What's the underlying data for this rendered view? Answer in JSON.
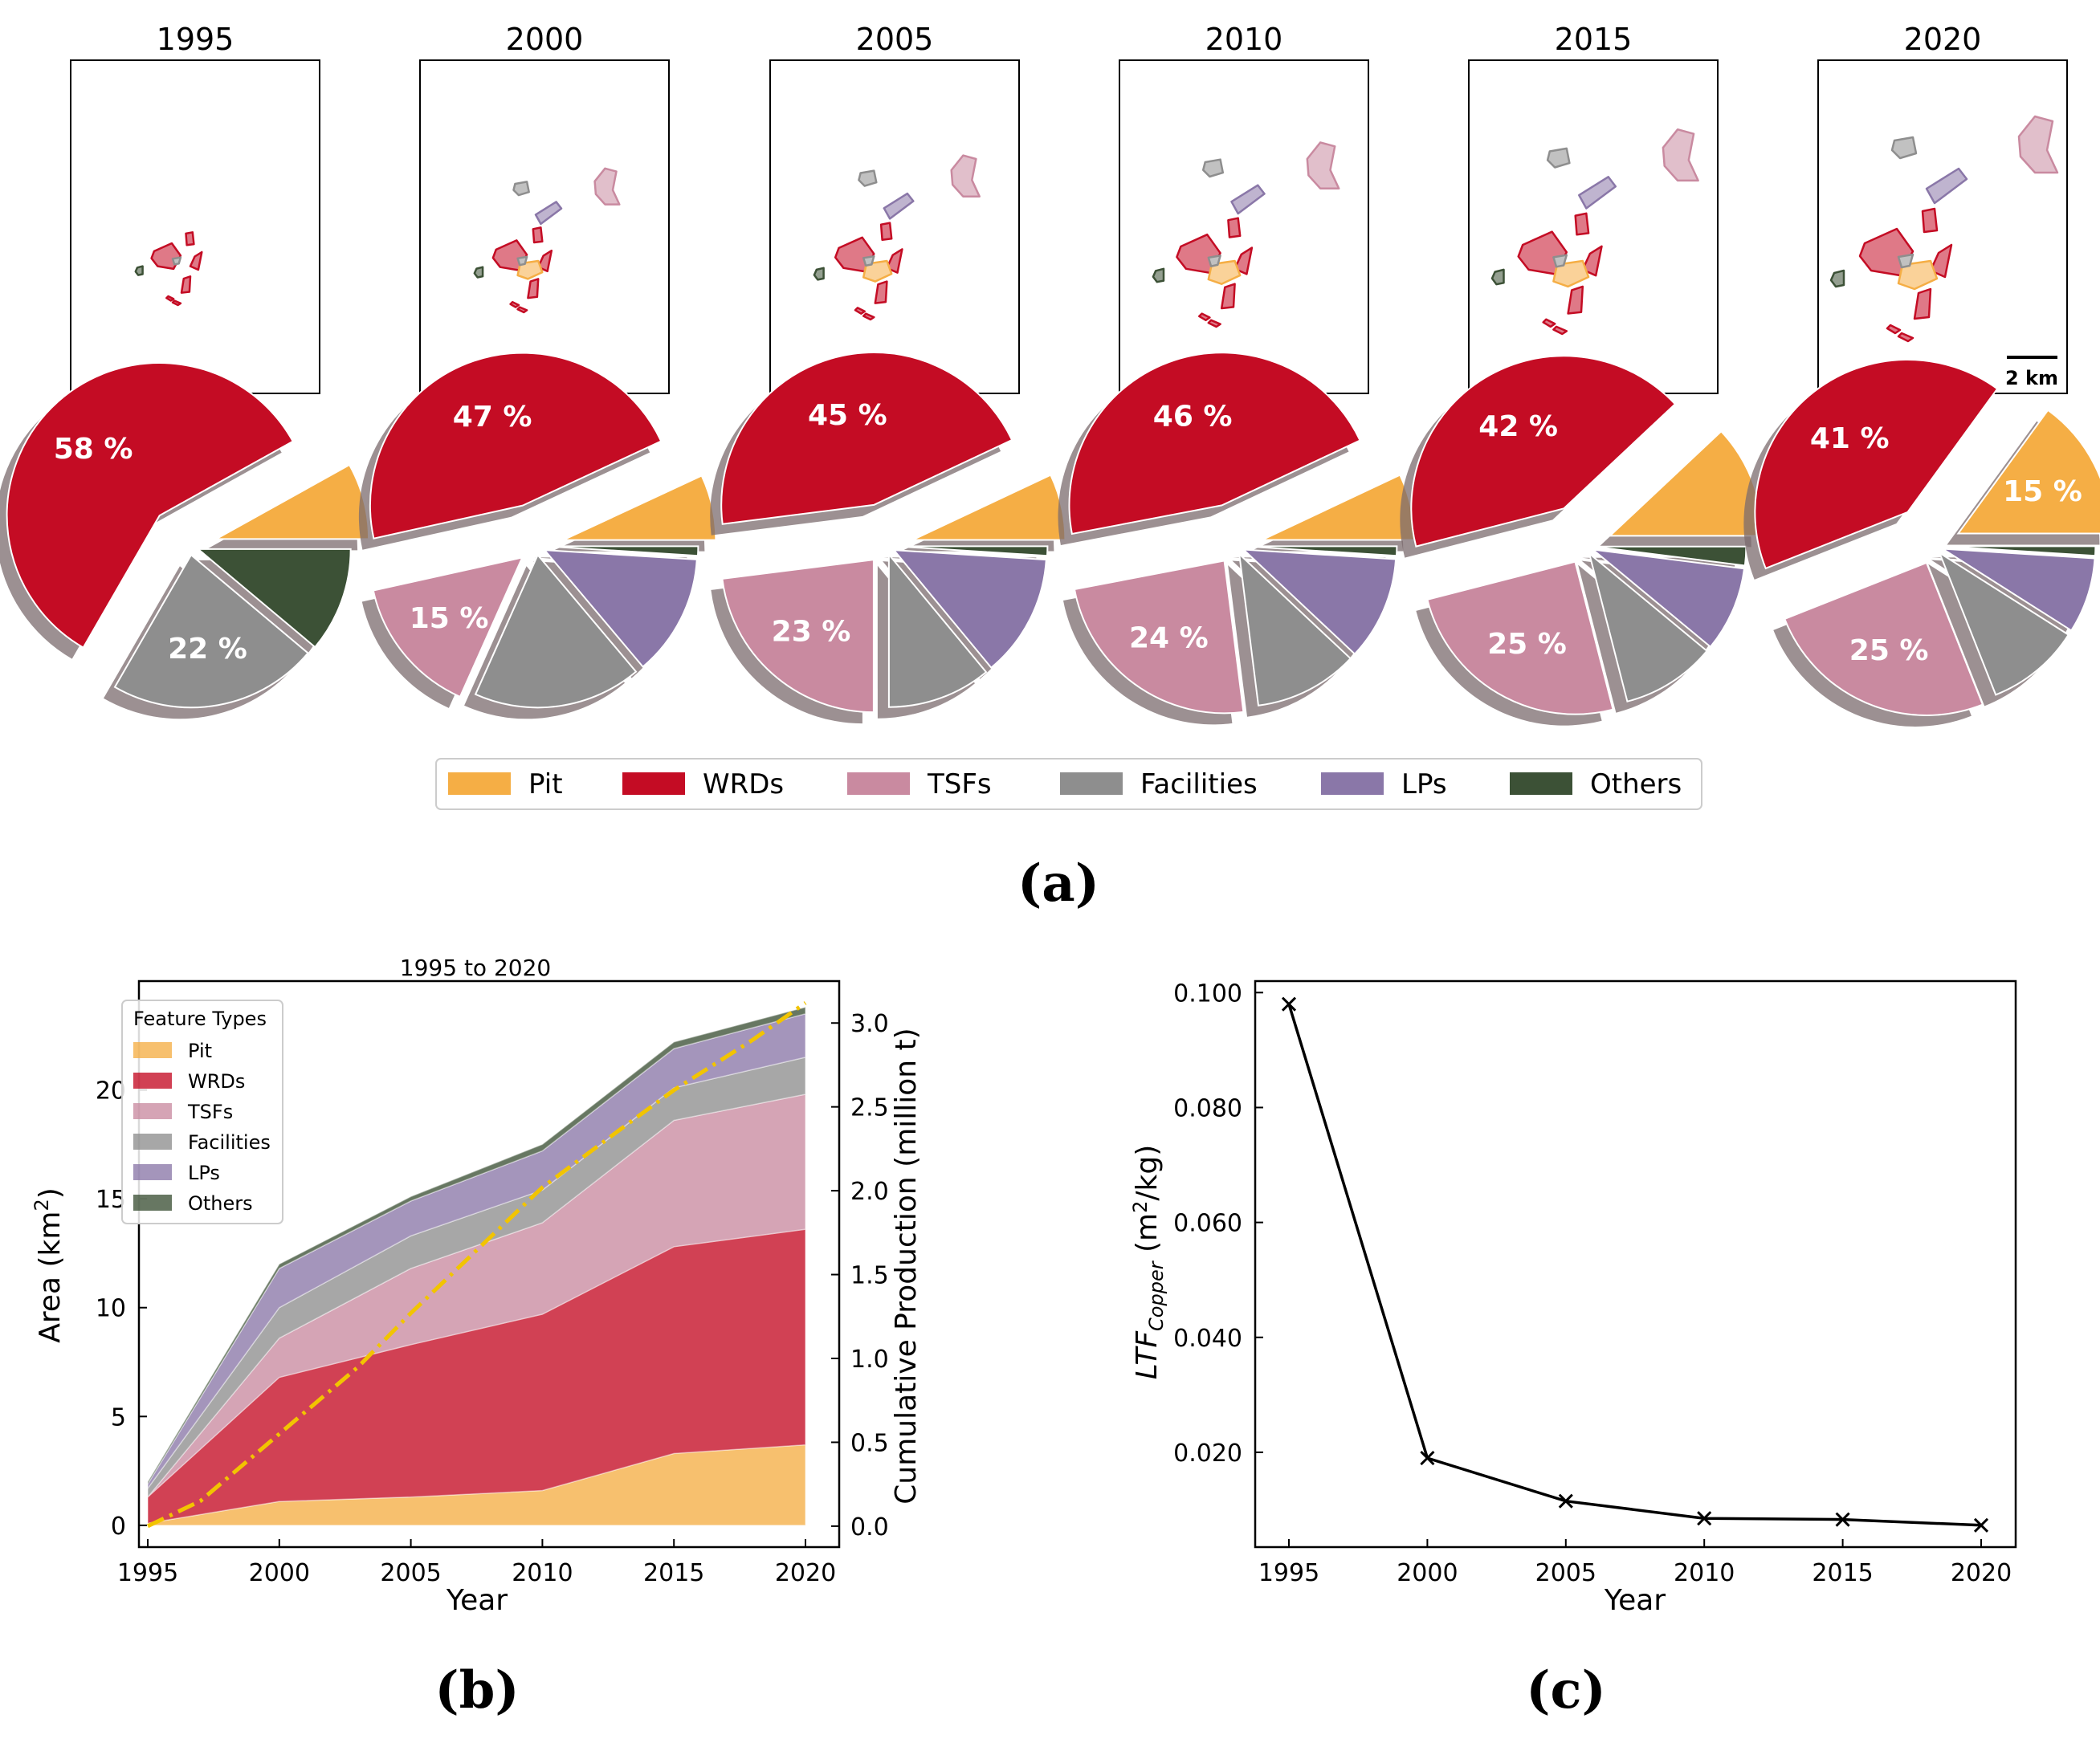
{
  "panel_labels": {
    "a": "(a)",
    "b": "(b)",
    "c": "(c)"
  },
  "colors": {
    "Pit": "#f5ae45",
    "WRDs": "#c40c24",
    "TSFs": "#c98aa0",
    "Facilities": "#8e8e8e",
    "LPs": "#8a77a8",
    "Others": "#3c5136",
    "production_line": "#f2c400"
  },
  "legend_a": [
    "Pit",
    "WRDs",
    "TSFs",
    "Facilities",
    "LPs",
    "Others"
  ],
  "scale_bar_label": "2 km",
  "chart_data": [
    {
      "type": "pie",
      "id": "a_pies",
      "years": [
        "1995",
        "2000",
        "2005",
        "2010",
        "2015",
        "2020"
      ],
      "categories": [
        "Pit",
        "WRDs",
        "TSFs",
        "Facilities",
        "LPs",
        "Others"
      ],
      "shares_percent": [
        [
          8,
          58,
          0,
          22,
          0,
          11
        ],
        [
          7,
          47,
          15,
          18,
          13,
          1
        ],
        [
          7,
          45,
          23,
          11,
          13,
          1
        ],
        [
          7,
          46,
          24,
          11,
          11,
          1
        ],
        [
          12,
          42,
          25,
          10,
          9,
          2
        ],
        [
          15,
          41,
          25,
          10,
          8,
          1
        ]
      ],
      "labels": [
        [
          null,
          "58 %",
          null,
          "22 %",
          null,
          null
        ],
        [
          null,
          "47 %",
          "15 %",
          null,
          null,
          null
        ],
        [
          null,
          "45 %",
          "23 %",
          null,
          null,
          null
        ],
        [
          null,
          "46 %",
          "24 %",
          null,
          null,
          null
        ],
        [
          null,
          "42 %",
          "25 %",
          null,
          null,
          null
        ],
        [
          "15 %",
          "41 %",
          "25 %",
          null,
          null,
          null
        ]
      ]
    },
    {
      "type": "area",
      "id": "b_stacked",
      "title": "1995 to 2020",
      "x": [
        1995,
        2000,
        2005,
        2010,
        2015,
        2020
      ],
      "xticks": [
        "1995",
        "2000",
        "2005",
        "2010",
        "2015",
        "2020"
      ],
      "xlabel": "Year",
      "ylabel_left": "Area (km",
      "ylabel_left_sup": "2",
      "ylabel_left_end": ")",
      "ylim_left": [
        -1,
        25
      ],
      "yticks_left": [
        "0",
        "5",
        "10",
        "15",
        "20"
      ],
      "ylabel_right": "Cumulative Production (million t)",
      "ylim_right": [
        -0.125,
        3.25
      ],
      "yticks_right": [
        "0.0",
        "0.5",
        "1.0",
        "1.5",
        "2.0",
        "2.5",
        "3.0"
      ],
      "legend_title": "Feature Types",
      "series": [
        {
          "name": "Pit",
          "values": [
            0.1,
            1.1,
            1.3,
            1.6,
            3.3,
            3.7
          ]
        },
        {
          "name": "WRDs",
          "values": [
            1.2,
            5.7,
            7.0,
            8.1,
            9.5,
            9.9
          ]
        },
        {
          "name": "TSFs",
          "values": [
            0.0,
            1.8,
            3.5,
            4.2,
            5.8,
            6.2
          ]
        },
        {
          "name": "Facilities",
          "values": [
            0.4,
            1.4,
            1.5,
            1.5,
            1.5,
            1.7
          ]
        },
        {
          "name": "LPs",
          "values": [
            0.2,
            1.8,
            1.6,
            1.8,
            1.8,
            2.0
          ]
        },
        {
          "name": "Others",
          "values": [
            0.1,
            0.2,
            0.2,
            0.3,
            0.3,
            0.3
          ]
        }
      ],
      "production": {
        "x": [
          1995,
          1997,
          2000,
          2003,
          2005,
          2008,
          2010,
          2013,
          2015,
          2018,
          2020
        ],
        "values": [
          0.0,
          0.15,
          0.55,
          0.95,
          1.27,
          1.72,
          2.02,
          2.37,
          2.6,
          2.9,
          3.12
        ]
      }
    },
    {
      "type": "line",
      "id": "c_ltf",
      "x": [
        1995,
        2000,
        2005,
        2010,
        2015,
        2020
      ],
      "values": [
        0.098,
        0.019,
        0.0115,
        0.0085,
        0.0083,
        0.0073
      ],
      "xticks": [
        "1995",
        "2000",
        "2005",
        "2010",
        "2015",
        "2020"
      ],
      "yticks": [
        "0.020",
        "0.040",
        "0.060",
        "0.080",
        "0.100"
      ],
      "ylim": [
        0.0035,
        0.102
      ],
      "xlabel": "Year",
      "ylabel_main": "LTF",
      "ylabel_sub": "Copper",
      "ylabel_unit_pre": " (m",
      "ylabel_unit_sup": "2",
      "ylabel_unit_post": "/kg)"
    }
  ]
}
